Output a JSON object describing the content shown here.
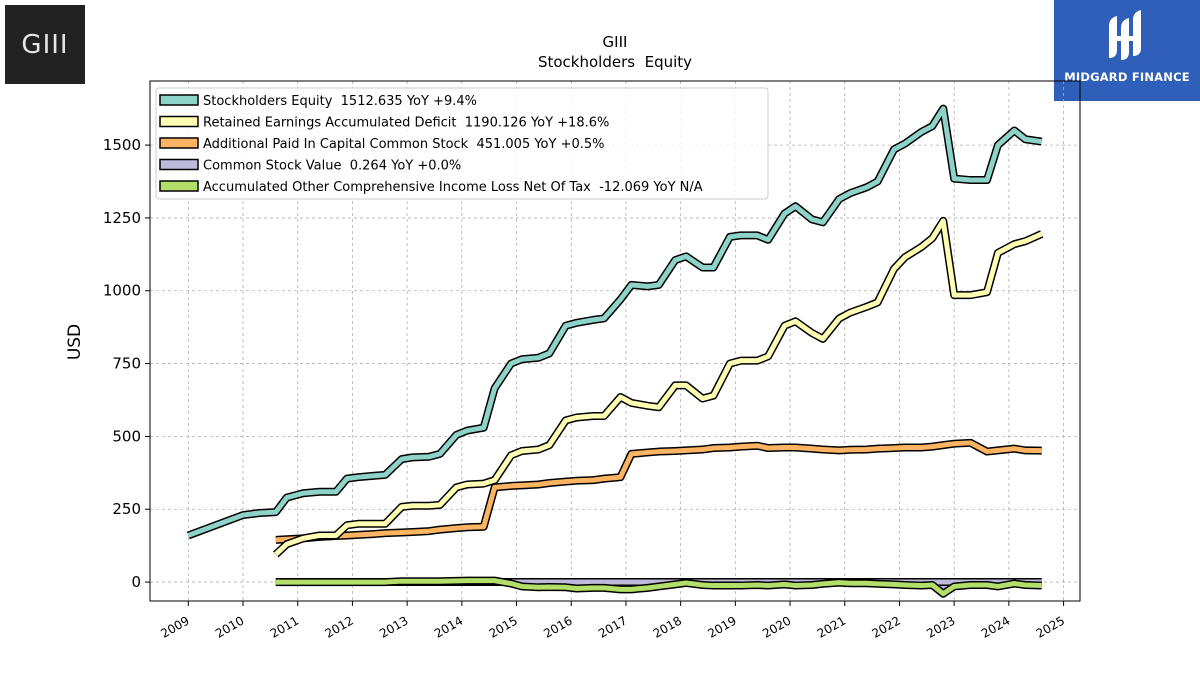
{
  "brand_left": {
    "text": "GIII"
  },
  "brand_right": {
    "text": "MIDGARD FINANCE",
    "color": "#2f5fb8"
  },
  "chart_data": {
    "type": "line",
    "title": "GIII",
    "subtitle": "Stockholders  Equity",
    "xlabel": "",
    "ylabel": "USD",
    "xlim": [
      2008.3,
      2025.3
    ],
    "ylim": [
      -65,
      1720
    ],
    "x_ticks": [
      "2009",
      "2010",
      "2011",
      "2012",
      "2013",
      "2014",
      "2015",
      "2016",
      "2017",
      "2018",
      "2019",
      "2020",
      "2021",
      "2022",
      "2023",
      "2024",
      "2025"
    ],
    "y_ticks": [
      "0",
      "250",
      "500",
      "750",
      "1000",
      "1250",
      "1500"
    ],
    "y_tick_values": [
      0,
      250,
      500,
      750,
      1000,
      1250,
      1500
    ],
    "grid": true,
    "legend_position": "top-left",
    "series": [
      {
        "name": "Stockholders Equity",
        "legend": "Stockholders Equity  1512.635 YoY +9.4%",
        "color": "#8dd3c7",
        "x": [
          2009.0,
          2010.0,
          2010.3,
          2010.6,
          2010.8,
          2011.1,
          2011.4,
          2011.7,
          2011.9,
          2012.1,
          2012.4,
          2012.6,
          2012.9,
          2013.1,
          2013.4,
          2013.6,
          2013.9,
          2014.1,
          2014.4,
          2014.6,
          2014.9,
          2015.1,
          2015.4,
          2015.6,
          2015.9,
          2016.1,
          2016.4,
          2016.6,
          2016.9,
          2017.1,
          2017.4,
          2017.6,
          2017.9,
          2018.1,
          2018.4,
          2018.6,
          2018.9,
          2019.1,
          2019.4,
          2019.6,
          2019.9,
          2020.1,
          2020.4,
          2020.6,
          2020.9,
          2021.1,
          2021.4,
          2021.6,
          2021.9,
          2022.1,
          2022.4,
          2022.6,
          2022.8,
          2023.0,
          2023.3,
          2023.6,
          2023.8,
          2024.1,
          2024.3,
          2024.6
        ],
        "values": [
          160,
          230,
          237,
          240,
          290,
          305,
          310,
          310,
          355,
          360,
          365,
          368,
          422,
          428,
          430,
          440,
          505,
          520,
          530,
          665,
          750,
          765,
          770,
          785,
          880,
          890,
          900,
          905,
          970,
          1020,
          1015,
          1020,
          1105,
          1118,
          1080,
          1080,
          1185,
          1190,
          1190,
          1175,
          1265,
          1290,
          1245,
          1235,
          1315,
          1335,
          1355,
          1375,
          1485,
          1505,
          1545,
          1565,
          1625,
          1385,
          1380,
          1380,
          1500,
          1550,
          1520,
          1512
        ]
      },
      {
        "name": "Retained Earnings Accumulated Deficit",
        "legend": "Retained Earnings Accumulated Deficit  1190.126 YoY +18.6%",
        "color": "#ffffb3",
        "x": [
          2010.6,
          2010.8,
          2011.1,
          2011.4,
          2011.7,
          2011.9,
          2012.1,
          2012.4,
          2012.6,
          2012.9,
          2013.1,
          2013.4,
          2013.6,
          2013.9,
          2014.1,
          2014.4,
          2014.6,
          2014.9,
          2015.1,
          2015.4,
          2015.6,
          2015.9,
          2016.1,
          2016.4,
          2016.6,
          2016.9,
          2017.1,
          2017.4,
          2017.6,
          2017.9,
          2018.1,
          2018.4,
          2018.6,
          2018.9,
          2019.1,
          2019.4,
          2019.6,
          2019.9,
          2020.1,
          2020.4,
          2020.6,
          2020.9,
          2021.1,
          2021.4,
          2021.6,
          2021.9,
          2022.1,
          2022.4,
          2022.6,
          2022.8,
          2023.0,
          2023.3,
          2023.6,
          2023.8,
          2024.1,
          2024.3,
          2024.6
        ],
        "values": [
          95,
          130,
          150,
          160,
          160,
          195,
          200,
          200,
          200,
          258,
          262,
          262,
          265,
          325,
          335,
          338,
          350,
          435,
          450,
          455,
          470,
          555,
          565,
          570,
          570,
          635,
          615,
          605,
          600,
          675,
          675,
          630,
          640,
          750,
          760,
          760,
          775,
          880,
          895,
          855,
          835,
          905,
          925,
          945,
          960,
          1075,
          1115,
          1150,
          1180,
          1240,
          985,
          985,
          995,
          1130,
          1160,
          1170,
          1195
        ]
      },
      {
        "name": "Additional Paid In Capital Common Stock",
        "legend": "Additional Paid In Capital Common Stock  451.005 YoY +0.5%",
        "color": "#fdb462",
        "x": [
          2010.6,
          2011.1,
          2011.4,
          2011.7,
          2011.9,
          2012.1,
          2012.4,
          2012.6,
          2012.9,
          2013.1,
          2013.4,
          2013.6,
          2013.9,
          2014.1,
          2014.4,
          2014.6,
          2014.9,
          2015.1,
          2015.4,
          2015.6,
          2015.9,
          2016.1,
          2016.4,
          2016.6,
          2016.9,
          2017.1,
          2017.4,
          2017.6,
          2017.9,
          2018.1,
          2018.4,
          2018.6,
          2018.9,
          2019.1,
          2019.4,
          2019.6,
          2019.9,
          2020.1,
          2020.4,
          2020.6,
          2020.9,
          2021.1,
          2021.4,
          2021.6,
          2021.9,
          2022.1,
          2022.4,
          2022.6,
          2022.8,
          2023.0,
          2023.3,
          2023.6,
          2023.8,
          2024.1,
          2024.3,
          2024.6
        ],
        "values": [
          145,
          150,
          155,
          158,
          160,
          162,
          165,
          168,
          170,
          172,
          175,
          180,
          185,
          188,
          190,
          325,
          330,
          332,
          335,
          340,
          345,
          348,
          350,
          355,
          360,
          440,
          445,
          448,
          450,
          452,
          455,
          460,
          462,
          465,
          468,
          460,
          462,
          462,
          458,
          455,
          452,
          454,
          455,
          458,
          460,
          462,
          462,
          465,
          470,
          475,
          478,
          448,
          452,
          458,
          452,
          451
        ]
      },
      {
        "name": "Common Stock Value",
        "legend": "Common Stock Value  0.264 YoY +0.0%",
        "color": "#bebada",
        "x": [
          2010.6,
          2024.6
        ],
        "values": [
          0.264,
          0.264
        ]
      },
      {
        "name": "Accumulated Other Comprehensive Income Loss Net Of Tax",
        "legend": "Accumulated Other Comprehensive Income Loss Net Of Tax  -12.069 YoY N/A",
        "color": "#b3de69",
        "x": [
          2010.6,
          2011.1,
          2011.6,
          2012.1,
          2012.6,
          2012.9,
          2013.1,
          2013.4,
          2013.6,
          2013.9,
          2014.1,
          2014.4,
          2014.6,
          2014.9,
          2015.1,
          2015.4,
          2015.6,
          2015.9,
          2016.1,
          2016.4,
          2016.6,
          2016.9,
          2017.1,
          2017.4,
          2017.6,
          2017.9,
          2018.1,
          2018.4,
          2018.6,
          2018.9,
          2019.1,
          2019.4,
          2019.6,
          2019.9,
          2020.1,
          2020.4,
          2020.6,
          2020.9,
          2021.1,
          2021.4,
          2021.6,
          2021.9,
          2022.1,
          2022.4,
          2022.6,
          2022.8,
          2023.0,
          2023.3,
          2023.6,
          2023.8,
          2024.1,
          2024.3,
          2024.6
        ],
        "values": [
          0,
          0,
          0,
          0,
          0,
          3,
          3,
          3,
          3,
          4,
          5,
          5,
          5,
          -5,
          -15,
          -18,
          -17,
          -18,
          -22,
          -20,
          -20,
          -25,
          -25,
          -20,
          -15,
          -8,
          -3,
          -10,
          -12,
          -12,
          -12,
          -10,
          -12,
          -8,
          -12,
          -10,
          -6,
          -2,
          -4,
          -4,
          -6,
          -8,
          -10,
          -12,
          -10,
          -40,
          -15,
          -10,
          -10,
          -15,
          -5,
          -10,
          -12
        ]
      }
    ]
  }
}
